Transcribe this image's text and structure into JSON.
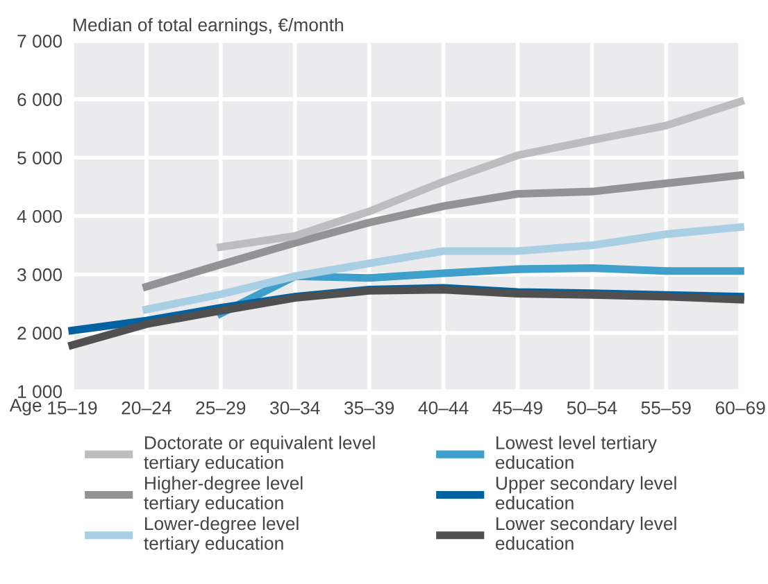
{
  "chart_data": {
    "type": "line",
    "title": "Median of total earnings, €/month",
    "xlabel": "Age",
    "categories": [
      "15–19",
      "20–24",
      "25–29",
      "30–34",
      "35–39",
      "40–44",
      "45–49",
      "50–54",
      "55–59",
      "60–69"
    ],
    "series": [
      {
        "name": "Doctorate or equivalent level\ntertiary education",
        "color": "#bdbdc0",
        "values": [
          null,
          null,
          3470,
          3660,
          4080,
          4590,
          5040,
          5300,
          5550,
          5960
        ]
      },
      {
        "name": "Higher-degree level\ntertiary education",
        "color": "#939396",
        "values": [
          null,
          2790,
          3170,
          3540,
          3890,
          4170,
          4380,
          4420,
          4560,
          4700
        ]
      },
      {
        "name": "Lower-degree level\ntertiary education",
        "color": "#a8cfe4",
        "values": [
          null,
          2400,
          2660,
          2970,
          3190,
          3400,
          3400,
          3500,
          3690,
          3810
        ]
      },
      {
        "name": "Lowest level tertiary\neducation",
        "color": "#3e9fcb",
        "values": [
          null,
          null,
          2330,
          2970,
          2940,
          3020,
          3090,
          3110,
          3060,
          3060
        ]
      },
      {
        "name": "Upper secondary level\neducation",
        "color": "#0062a0",
        "values": [
          2040,
          2210,
          2430,
          2620,
          2740,
          2770,
          2700,
          2680,
          2650,
          2620
        ]
      },
      {
        "name": "Lower secondary level\neducation",
        "color": "#505050",
        "values": [
          1790,
          2150,
          2380,
          2600,
          2720,
          2740,
          2670,
          2650,
          2620,
          2570
        ]
      }
    ],
    "ylim": [
      1000,
      7000
    ],
    "yticks": [
      {
        "value": 1000,
        "label": "1 000"
      },
      {
        "value": 2000,
        "label": "2 000"
      },
      {
        "value": 3000,
        "label": "3 000"
      },
      {
        "value": 4000,
        "label": "4 000"
      },
      {
        "value": 5000,
        "label": "5 000"
      },
      {
        "value": 6000,
        "label": "6 000"
      },
      {
        "value": 7000,
        "label": "7 000"
      }
    ],
    "grid": true,
    "legend": "bottom",
    "marker": "none",
    "line_style": "solid"
  }
}
